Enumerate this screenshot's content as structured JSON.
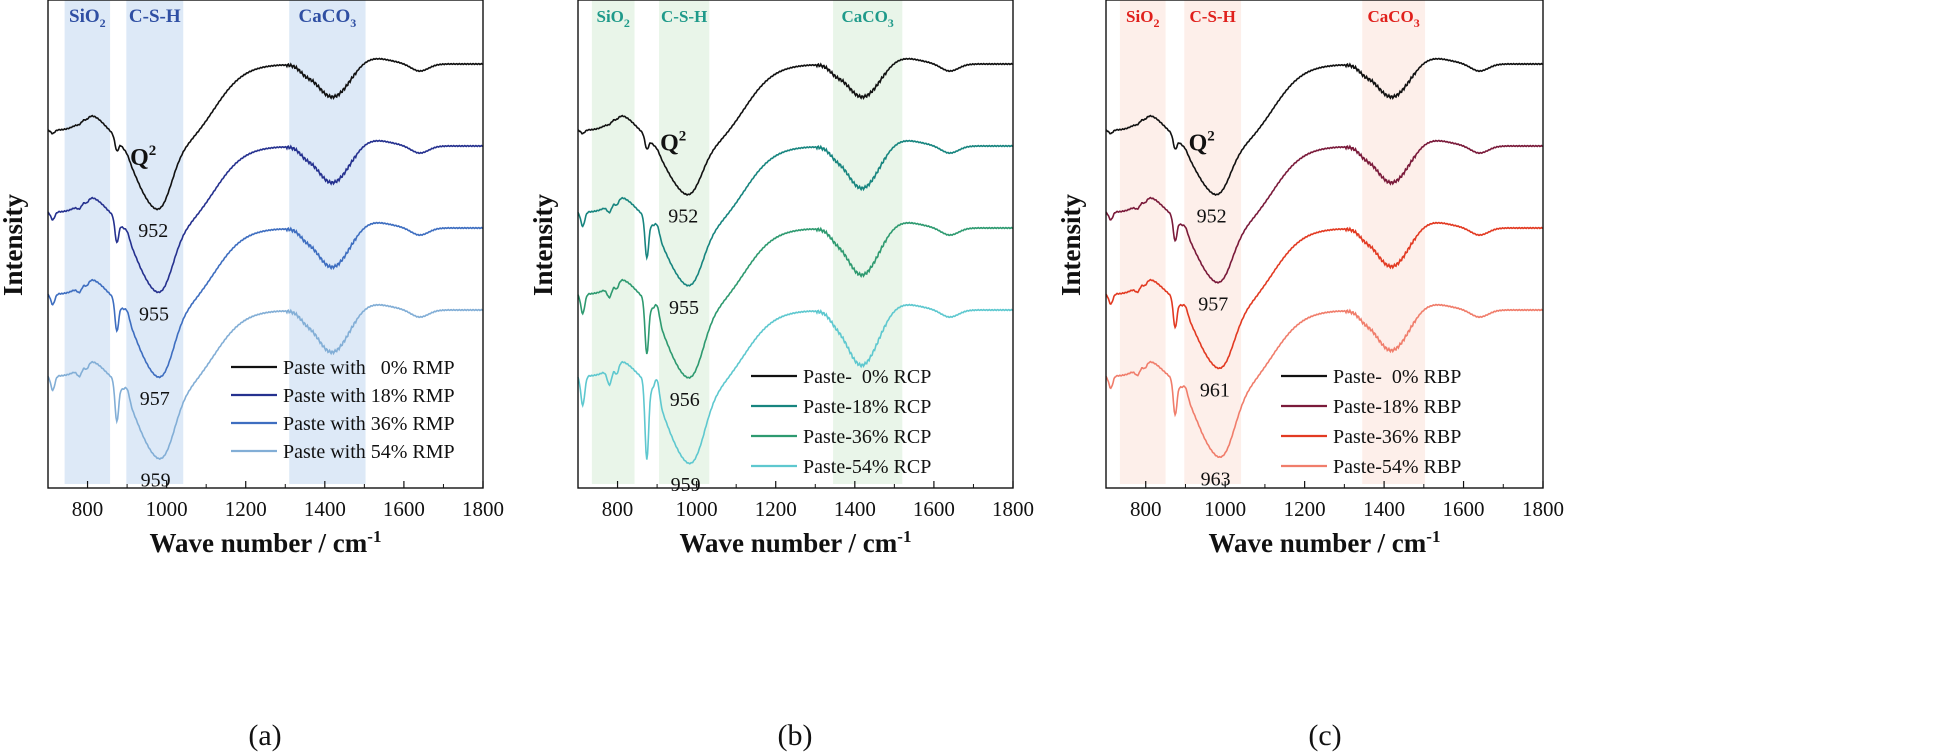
{
  "chart_data": [
    {
      "panel_label": "(a)",
      "type": "line",
      "xlabel": "Wave number / cm",
      "xlabel_sup": "-1",
      "ylabel": "Intensity",
      "xlim": [
        700,
        1800
      ],
      "xticks": [
        800,
        1000,
        1200,
        1400,
        1600,
        1800
      ],
      "y_units": "arbitrary (stacked, normalized)",
      "palette": {
        "band": "#9fc1e8",
        "label": "#2f4fa3"
      },
      "bands": [
        {
          "label": "SiO",
          "sub": "2",
          "from": 742,
          "to": 857
        },
        {
          "label": "C-S-H",
          "sub": "",
          "from": 898,
          "to": 1042
        },
        {
          "label": "CaCO",
          "sub": "3",
          "from": 1310,
          "to": 1503
        }
      ],
      "q2_label": {
        "text": "Q",
        "sup": "2"
      },
      "legend_position": "bottom-right",
      "series": [
        {
          "name": "Paste with   0% RMP",
          "color": "#111111",
          "peak": 952,
          "offset": 0.92,
          "depth": 0.94,
          "sharp": 0.0
        },
        {
          "name": "Paste with 18% RMP",
          "color": "#25318f",
          "peak": 955,
          "offset": 0.0,
          "depth": 0.95,
          "sharp": 0.2
        },
        {
          "name": "Paste with 36% RMP",
          "color": "#3e6ec0",
          "peak": 957,
          "offset": -0.95,
          "depth": 0.99,
          "sharp": 0.33
        },
        {
          "name": "Paste with 54% RMP",
          "color": "#82aed6",
          "peak": 959,
          "offset": -1.95,
          "depth": 0.98,
          "sharp": 0.5
        }
      ]
    },
    {
      "panel_label": "(b)",
      "type": "line",
      "xlabel": "Wave number / cm",
      "xlabel_sup": "-1",
      "ylabel": "Intensity",
      "xlim": [
        700,
        1800
      ],
      "xticks": [
        800,
        1000,
        1200,
        1400,
        1600,
        1800
      ],
      "y_units": "arbitrary (stacked, normalized)",
      "palette": {
        "band": "#bfe3bf",
        "label": "#1f9a8a"
      },
      "bands": [
        {
          "label": "SiO",
          "sub": "2",
          "from": 735,
          "to": 843
        },
        {
          "label": "C-S-H",
          "sub": "",
          "from": 905,
          "to": 1032
        },
        {
          "label": "CaCO",
          "sub": "3",
          "from": 1345,
          "to": 1520
        }
      ],
      "q2_label": {
        "text": "Q",
        "sup": "2"
      },
      "legend_position": "bottom-right",
      "series": [
        {
          "name": "Paste-  0% RCP",
          "color": "#111111",
          "peak": 952,
          "offset": 0.85,
          "depth": 0.72,
          "sharp": 0.0
        },
        {
          "name": "Paste-18% RCP",
          "color": "#17857f",
          "peak": 955,
          "offset": 0.0,
          "depth": 0.85,
          "sharp": 0.5
        },
        {
          "name": "Paste-36% RCP",
          "color": "#2e9a70",
          "peak": 956,
          "offset": -0.8,
          "depth": 1.0,
          "sharp": 0.75
        },
        {
          "name": "Paste-54% RCP",
          "color": "#5ec8cf",
          "peak": 959,
          "offset": -1.65,
          "depth": 1.05,
          "sharp": 1.2
        }
      ]
    },
    {
      "panel_label": "(c)",
      "type": "line",
      "xlabel": "Wave number / cm",
      "xlabel_sup": "-1",
      "ylabel": "Intensity",
      "xlim": [
        700,
        1800
      ],
      "xticks": [
        800,
        1000,
        1200,
        1400,
        1600,
        1800
      ],
      "y_units": "arbitrary (stacked, normalized)",
      "palette": {
        "band": "#f8d2c2",
        "label": "#e0201c"
      },
      "bands": [
        {
          "label": "SiO",
          "sub": "2",
          "from": 735,
          "to": 850
        },
        {
          "label": "C-S-H",
          "sub": "",
          "from": 897,
          "to": 1040
        },
        {
          "label": "CaCO",
          "sub": "3",
          "from": 1345,
          "to": 1503
        }
      ],
      "q2_label": {
        "text": "Q",
        "sup": "2"
      },
      "legend_position": "bottom-right",
      "series": [
        {
          "name": "Paste-  0% RBP",
          "color": "#111111",
          "peak": 952,
          "offset": 0.85,
          "depth": 0.72,
          "sharp": 0.0
        },
        {
          "name": "Paste-18% RBP",
          "color": "#7a1a3a",
          "peak": 957,
          "offset": 0.0,
          "depth": 0.8,
          "sharp": 0.2
        },
        {
          "name": "Paste-36% RBP",
          "color": "#e23a22",
          "peak": 961,
          "offset": -0.9,
          "depth": 0.85,
          "sharp": 0.3
        },
        {
          "name": "Paste-54% RBP",
          "color": "#f07d6b",
          "peak": 963,
          "offset": -1.9,
          "depth": 0.95,
          "sharp": 0.4
        }
      ]
    }
  ]
}
